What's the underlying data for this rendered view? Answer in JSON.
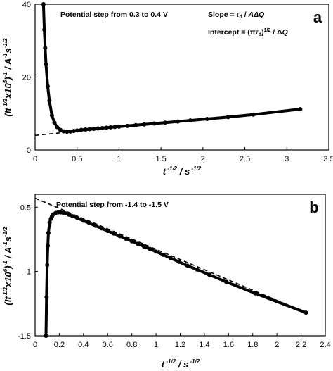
{
  "chart_data": [
    {
      "type": "scatter",
      "panel_label": "a",
      "annotation": "Potential step from 0.3 to 0.4 V",
      "slope_text": "Slope = τd / AΔQ",
      "intercept_text": "Intercept = (π τd)1/2 / ΔQ",
      "xlabel": "t -1/2 / s -1/2",
      "ylabel": "(It 1/2x105)-1 / A-1s-1/2",
      "xlim": [
        0,
        3.5
      ],
      "ylim": [
        0,
        40
      ],
      "x_ticks": [
        "0",
        "0.5",
        "1",
        "1.5",
        "2",
        "2.5",
        "3",
        "3.5"
      ],
      "y_ticks": [
        "0",
        "20",
        "40"
      ],
      "series": [
        {
          "style": "markers",
          "x": [
            0.1,
            0.11,
            0.12,
            0.13,
            0.15,
            0.17,
            0.2,
            0.23,
            0.26,
            0.3,
            0.34,
            0.38,
            0.42,
            0.46,
            0.5,
            0.55,
            0.6,
            0.65,
            0.7,
            0.75,
            0.8,
            0.85,
            0.9,
            0.95,
            1.0,
            1.1,
            1.2,
            1.3,
            1.42,
            1.55,
            1.7,
            1.85,
            2.05,
            2.3,
            2.6,
            3.16
          ],
          "y": [
            40,
            33,
            28,
            23.5,
            17.5,
            13.5,
            9.5,
            7.5,
            6.3,
            5.5,
            5.1,
            5.0,
            5.05,
            5.2,
            5.35,
            5.5,
            5.6,
            5.7,
            5.8,
            5.9,
            6.0,
            6.1,
            6.2,
            6.3,
            6.4,
            6.6,
            6.8,
            7.0,
            7.25,
            7.5,
            7.8,
            8.1,
            8.5,
            9.0,
            9.7,
            11.2
          ]
        },
        {
          "style": "dashed-fit",
          "x": [
            0,
            3.16
          ],
          "y": [
            4.0,
            11.2
          ]
        }
      ]
    },
    {
      "type": "scatter",
      "panel_label": "b",
      "annotation": "Potential step from -1.4 to -1.5 V",
      "xlabel": "t -1/2 / s -1/2",
      "ylabel": "(It 1/2x106)-1 / A-1s-1/2",
      "xlim": [
        0,
        2.4
      ],
      "ylim": [
        -1.5,
        -0.4
      ],
      "x_ticks": [
        "0",
        "0.2",
        "0.4",
        "0.6",
        "0.8",
        "1",
        "1.2",
        "1.4",
        "1.6",
        "1.8",
        "2",
        "2.2",
        "2.4"
      ],
      "y_ticks": [
        "-0.5",
        "-1",
        "-1.5"
      ],
      "series": [
        {
          "style": "markers",
          "x": [
            0.09,
            0.095,
            0.1,
            0.105,
            0.11,
            0.12,
            0.13,
            0.14,
            0.15,
            0.17,
            0.19,
            0.21,
            0.23,
            0.25,
            0.28,
            0.31,
            0.35,
            0.4,
            0.45,
            0.5,
            0.55,
            0.6,
            0.65,
            0.7,
            0.75,
            0.8,
            0.85,
            0.9,
            0.95,
            1.0,
            1.06,
            1.12,
            1.19,
            1.26,
            1.34,
            1.44,
            1.58,
            1.82,
            2.24
          ],
          "y": [
            -1.5,
            -1.2,
            -0.95,
            -0.8,
            -0.7,
            -0.62,
            -0.59,
            -0.57,
            -0.555,
            -0.545,
            -0.54,
            -0.54,
            -0.542,
            -0.548,
            -0.558,
            -0.57,
            -0.585,
            -0.605,
            -0.625,
            -0.645,
            -0.665,
            -0.685,
            -0.705,
            -0.725,
            -0.745,
            -0.765,
            -0.785,
            -0.805,
            -0.825,
            -0.845,
            -0.87,
            -0.895,
            -0.925,
            -0.955,
            -0.985,
            -1.025,
            -1.08,
            -1.17,
            -1.32
          ]
        },
        {
          "style": "dashed-fit",
          "x": [
            0,
            2.24
          ],
          "y": [
            -0.43,
            -1.32
          ]
        }
      ]
    }
  ]
}
